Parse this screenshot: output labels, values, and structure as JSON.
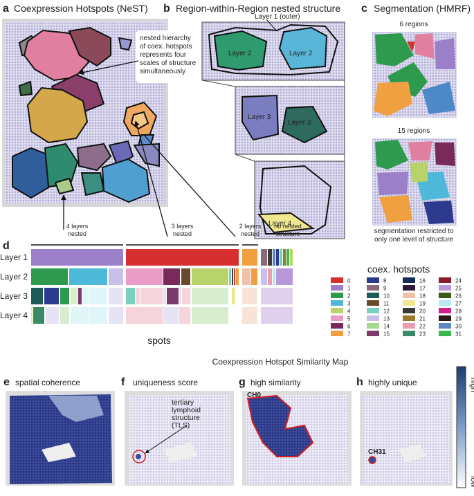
{
  "panel_a": {
    "letter": "a",
    "title": "Coexpression Hotspots (NeST)",
    "annotation": [
      "nested hierarchy",
      "of coex. hotspots",
      "represents four",
      "scales of structure",
      "simultaneously"
    ]
  },
  "panel_b": {
    "letter": "b",
    "title": "Region-within-Region nested structure",
    "layer1": "Layer 1 (outer)",
    "layer2_left": "Layer 2",
    "layer2_right": "Layer 2",
    "layer3_left": "Layer 3",
    "layer3_right": "Layer 3",
    "layer4": "Layer 4"
  },
  "panel_c": {
    "letter": "c",
    "title": "Segmentation (HMRF)",
    "top_label": "6 regions",
    "bottom_label": "15 regions",
    "caption": [
      "segmentation restricted to",
      "only one level of structure"
    ]
  },
  "panel_d": {
    "letter": "d",
    "groups": [
      [
        "4 layers",
        "nested"
      ],
      [
        "3 layers",
        "nested"
      ],
      [
        "2 layers",
        "nested"
      ],
      [
        "no nested",
        "structure"
      ]
    ],
    "rows": [
      "Layer 1",
      "Layer 2",
      "Layer 3",
      "Layer 4"
    ],
    "x_label": "spots",
    "legend": {
      "title": "coex. hotspots",
      "items": [
        {
          "label": "0",
          "color": "#d62f2f"
        },
        {
          "label": "1",
          "color": "#9b7fc8"
        },
        {
          "label": "2",
          "color": "#2e9a4e"
        },
        {
          "label": "3",
          "color": "#4db8d8"
        },
        {
          "label": "4",
          "color": "#b8d36a"
        },
        {
          "label": "5",
          "color": "#e89cc6"
        },
        {
          "label": "6",
          "color": "#7a2a5a"
        },
        {
          "label": "7",
          "color": "#f0a040"
        },
        {
          "label": "8",
          "color": "#2e3a8e"
        },
        {
          "label": "9",
          "color": "#8a6a7a"
        },
        {
          "label": "10",
          "color": "#1e5a5a"
        },
        {
          "label": "11",
          "color": "#6a4a2a"
        },
        {
          "label": "12",
          "color": "#7ad0c0"
        },
        {
          "label": "13",
          "color": "#c8c0e8"
        },
        {
          "label": "14",
          "color": "#a8d890"
        },
        {
          "label": "15",
          "color": "#7a3a6a"
        },
        {
          "label": "16",
          "color": "#1a2a5a"
        },
        {
          "label": "17",
          "color": "#2a1a3a"
        },
        {
          "label": "18",
          "color": "#f0c0a8"
        },
        {
          "label": "19",
          "color": "#f0e890"
        },
        {
          "label": "20",
          "color": "#3a3a3a"
        },
        {
          "label": "21",
          "color": "#9a7a2a"
        },
        {
          "label": "22",
          "color": "#e8a0b0"
        },
        {
          "label": "23",
          "color": "#3a8a6a"
        },
        {
          "label": "24",
          "color": "#8a1a2a"
        },
        {
          "label": "25",
          "color": "#b898d8"
        },
        {
          "label": "26",
          "color": "#3a5a1a"
        },
        {
          "label": "27",
          "color": "#b8e8f0"
        },
        {
          "label": "28",
          "color": "#d0208a"
        },
        {
          "label": "29",
          "color": "#2a1a1a"
        },
        {
          "label": "30",
          "color": "#5a88c0"
        },
        {
          "label": "31",
          "color": "#3ab84a"
        }
      ]
    }
  },
  "similarity_title": "Coexpression Hotspot Similarity Map",
  "panel_e": {
    "letter": "e",
    "title": "spatial coherence"
  },
  "panel_f": {
    "letter": "f",
    "title": "uniqueness score",
    "annotation": [
      "tertiary",
      "lymphoid",
      "structure",
      "(TLS)"
    ]
  },
  "panel_g": {
    "letter": "g",
    "title": "high similarity",
    "label": "CH0"
  },
  "panel_h": {
    "letter": "h",
    "title": "highly unique",
    "label": "CH31"
  },
  "colorbar": {
    "high": "high",
    "low": "low"
  }
}
